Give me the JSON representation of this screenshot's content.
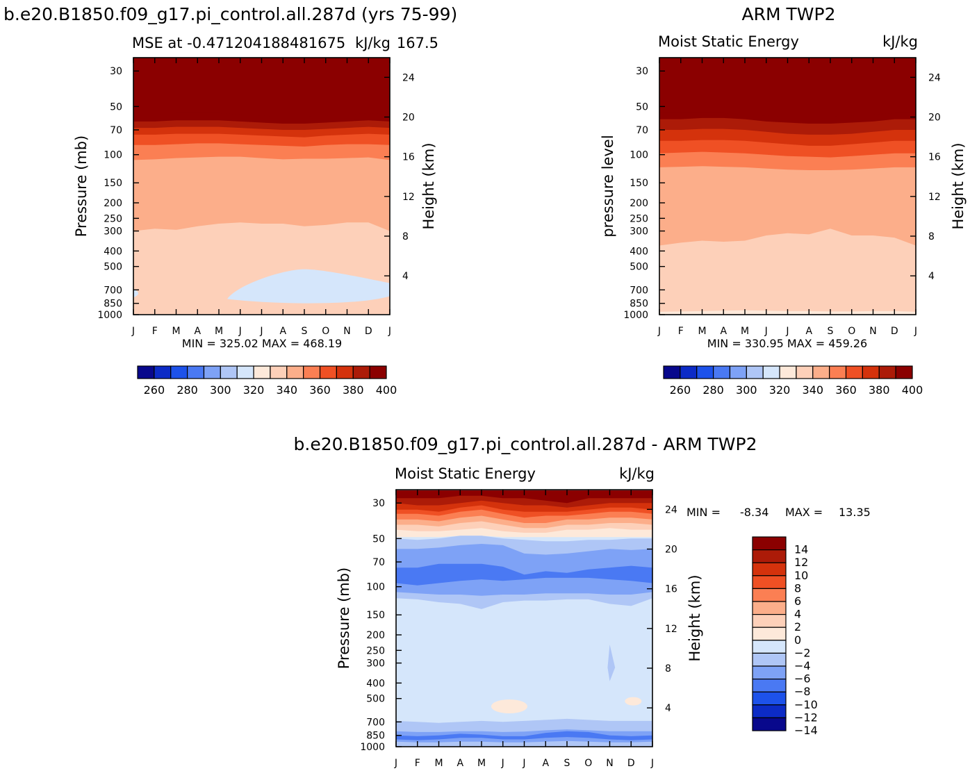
{
  "months": [
    "J",
    "F",
    "M",
    "A",
    "M",
    "J",
    "J",
    "A",
    "S",
    "O",
    "N",
    "D",
    "J"
  ],
  "pressure_ticks": [
    "30",
    "50",
    "70",
    "100",
    "150",
    "200",
    "250",
    "300",
    "400",
    "500",
    "700",
    "850",
    "1000"
  ],
  "pressure_values": [
    30,
    50,
    70,
    100,
    150,
    200,
    250,
    300,
    400,
    500,
    700,
    850,
    1000
  ],
  "height_ticks": [
    "24",
    "20",
    "16",
    "12",
    "8",
    "4"
  ],
  "colors": {
    "abs_scale": [
      "#08088c",
      "#0c2bc6",
      "#1d52ea",
      "#4a79f3",
      "#7ea2f6",
      "#afc6f6",
      "#d5e6fb",
      "#fde9da",
      "#fdd0b9",
      "#fcae8a",
      "#fb7f53",
      "#ef5024",
      "#d4320c",
      "#ac1b08",
      "#8b0000"
    ],
    "diff_scale": [
      "#08088c",
      "#0c2bc6",
      "#1d52ea",
      "#4a79f3",
      "#7ea2f6",
      "#afc6f6",
      "#d5e6fb",
      "#fde9da",
      "#fdd0b9",
      "#fcae8a",
      "#fb7f53",
      "#ef5024",
      "#d4320c",
      "#ac1b08",
      "#8b0000"
    ]
  },
  "chart_data": [
    {
      "type": "heatmap",
      "figure_title": "b.e20.B1850.f09_g17.pi_control.all.287d (yrs 75-99)",
      "left_string": "MSE at -0.471204188481675",
      "right_string": "kJ/kg",
      "extra_string": "167.5",
      "ylabel": "Pressure (mb)",
      "ylabel2": "Height (km)",
      "stats": "MIN = 325.02 MAX = 468.19",
      "min": 325.02,
      "max": 468.19,
      "contour_levels": [
        260,
        270,
        280,
        290,
        300,
        310,
        320,
        330,
        340,
        350,
        360,
        370,
        380,
        390,
        400
      ],
      "colorbar_labels": [
        "260",
        "280",
        "300",
        "320",
        "340",
        "360",
        "380",
        "400"
      ],
      "x": [
        "J",
        "F",
        "M",
        "A",
        "M",
        "J",
        "J",
        "A",
        "S",
        "O",
        "N",
        "D",
        "J"
      ],
      "boundaries": [
        {
          "level": 330,
          "pressure": [
            990,
            990,
            990,
            990,
            990,
            990,
            990,
            990,
            990,
            990,
            990,
            990,
            990
          ]
        },
        {
          "level": 340,
          "pressure": [
            300,
            290,
            295,
            280,
            270,
            265,
            270,
            270,
            280,
            275,
            265,
            265,
            300
          ]
        },
        {
          "level": 350,
          "pressure": [
            108,
            107,
            105,
            104,
            103,
            103,
            105,
            107,
            106,
            106,
            105,
            104,
            108
          ]
        },
        {
          "level": 360,
          "pressure": [
            87,
            87,
            86,
            85,
            85,
            86,
            87,
            88,
            89,
            87,
            86,
            86,
            87
          ]
        },
        {
          "level": 370,
          "pressure": [
            75,
            75,
            74,
            74,
            74,
            75,
            76,
            77,
            78,
            76,
            75,
            74,
            75
          ]
        },
        {
          "level": 380,
          "pressure": [
            68,
            68,
            67,
            67,
            67,
            68,
            69,
            70,
            70,
            69,
            68,
            67,
            68
          ]
        },
        {
          "level": 390,
          "pressure": [
            62,
            62,
            61,
            61,
            61,
            62,
            63,
            64,
            64,
            63,
            62,
            61,
            62
          ]
        },
        {
          "level": 400,
          "pressure": [
            56,
            56,
            55,
            55,
            55,
            56,
            57,
            58,
            58,
            57,
            56,
            55,
            56
          ]
        }
      ],
      "blue_patch": {
        "level": 330,
        "months": [
          4.5,
          11.8
        ],
        "top_pressure": 520,
        "bottom_pressure": 830
      }
    },
    {
      "type": "heatmap",
      "figure_title": "ARM TWP2",
      "left_string": "Moist Static Energy",
      "right_string": "kJ/kg",
      "ylabel": "pressure level",
      "ylabel2": "Height (km)",
      "stats": "MIN = 330.95 MAX = 459.26",
      "min": 330.95,
      "max": 459.26,
      "contour_levels": [
        260,
        270,
        280,
        290,
        300,
        310,
        320,
        330,
        340,
        350,
        360,
        370,
        380,
        390,
        400
      ],
      "colorbar_labels": [
        "260",
        "280",
        "300",
        "320",
        "340",
        "360",
        "380",
        "400"
      ],
      "x": [
        "J",
        "F",
        "M",
        "A",
        "M",
        "J",
        "J",
        "A",
        "S",
        "O",
        "N",
        "D",
        "J"
      ],
      "boundaries": [
        {
          "level": 330,
          "pressure": [
            960,
            955,
            950,
            945,
            940,
            945,
            950,
            950,
            955,
            955,
            950,
            950,
            960
          ]
        },
        {
          "level": 340,
          "pressure": [
            370,
            355,
            345,
            350,
            345,
            320,
            310,
            315,
            290,
            320,
            320,
            330,
            370
          ]
        },
        {
          "level": 350,
          "pressure": [
            120,
            119,
            118,
            119,
            120,
            122,
            124,
            125,
            125,
            124,
            122,
            120,
            120
          ]
        },
        {
          "level": 360,
          "pressure": [
            98,
            97,
            96,
            97,
            98,
            100,
            102,
            103,
            104,
            102,
            100,
            98,
            98
          ]
        },
        {
          "level": 370,
          "pressure": [
            82,
            82,
            81,
            81,
            82,
            84,
            86,
            88,
            88,
            86,
            84,
            82,
            82
          ]
        },
        {
          "level": 380,
          "pressure": [
            70,
            70,
            69,
            69,
            70,
            72,
            74,
            75,
            75,
            74,
            72,
            70,
            70
          ]
        },
        {
          "level": 390,
          "pressure": [
            60,
            60,
            59,
            59,
            60,
            62,
            63,
            64,
            64,
            63,
            62,
            60,
            60
          ]
        },
        {
          "level": 400,
          "pressure": [
            55,
            55,
            55,
            55,
            56,
            57,
            58,
            58,
            58,
            57,
            56,
            55,
            55
          ]
        }
      ]
    },
    {
      "type": "heatmap",
      "figure_title": "b.e20.B1850.f09_g17.pi_control.all.287d - ARM TWP2",
      "left_string": "Moist Static Energy",
      "right_string": "kJ/kg",
      "ylabel": "Pressure (mb)",
      "ylabel2": "Height (km)",
      "stats_label_min": "MIN =",
      "stats_min": "-8.34",
      "stats_label_max": "MAX =",
      "stats_max": "13.35",
      "min": -8.34,
      "max": 13.35,
      "contour_levels": [
        -14,
        -12,
        -10,
        -8,
        -6,
        -4,
        -2,
        0,
        2,
        4,
        6,
        8,
        10,
        12,
        14
      ],
      "colorbar_labels": [
        "14",
        "12",
        "10",
        "8",
        "6",
        "4",
        "2",
        "0",
        "-2",
        "-4",
        "-6",
        "-8",
        "-10",
        "-12",
        "-14"
      ],
      "x": [
        "J",
        "F",
        "M",
        "A",
        "M",
        "J",
        "J",
        "A",
        "S",
        "O",
        "N",
        "D",
        "J"
      ]
    }
  ]
}
